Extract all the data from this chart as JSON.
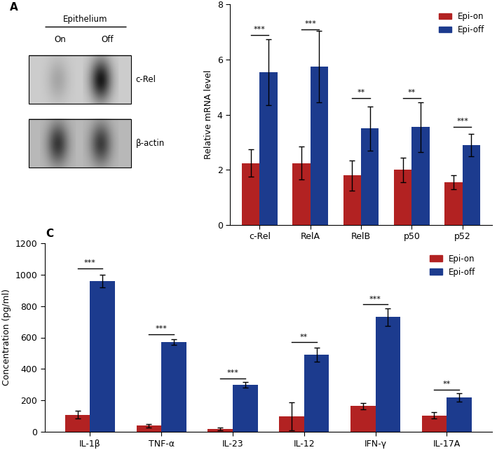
{
  "panel_B": {
    "categories": [
      "c-Rel",
      "RelA",
      "RelB",
      "p50",
      "p52"
    ],
    "epi_on_means": [
      2.25,
      2.25,
      1.8,
      2.0,
      1.55
    ],
    "epi_off_means": [
      5.55,
      5.75,
      3.5,
      3.55,
      2.9
    ],
    "epi_on_errors": [
      0.5,
      0.6,
      0.55,
      0.45,
      0.25
    ],
    "epi_off_errors": [
      1.2,
      1.3,
      0.8,
      0.9,
      0.4
    ],
    "significance": [
      "***",
      "***",
      "**",
      "**",
      "***"
    ],
    "sig_heights": [
      6.9,
      7.1,
      4.6,
      4.6,
      3.55
    ],
    "ylabel": "Relative mRNA level",
    "ylim": [
      0,
      8
    ],
    "yticks": [
      0,
      2,
      4,
      6,
      8
    ]
  },
  "panel_C": {
    "categories": [
      "IL-1β",
      "TNF-α",
      "IL-23",
      "IL-12",
      "IFN-γ",
      "IL-17A"
    ],
    "epi_on_means": [
      110,
      40,
      18,
      100,
      165,
      105
    ],
    "epi_off_means": [
      960,
      570,
      300,
      490,
      730,
      220
    ],
    "epi_on_errors": [
      25,
      12,
      8,
      90,
      20,
      20
    ],
    "epi_off_errors": [
      40,
      18,
      18,
      45,
      55,
      28
    ],
    "significance": [
      "***",
      "***",
      "***",
      "**",
      "***",
      "**"
    ],
    "sig_heights": [
      1040,
      620,
      340,
      570,
      810,
      270
    ],
    "ylabel": "Concentration (pg/ml)",
    "ylim": [
      0,
      1200
    ],
    "yticks": [
      0,
      200,
      400,
      600,
      800,
      1000,
      1200
    ]
  },
  "epi_on_color": "#B22222",
  "epi_off_color": "#1C3B8E",
  "bar_width": 0.35,
  "legend_labels": [
    "Epi-on",
    "Epi-off"
  ]
}
